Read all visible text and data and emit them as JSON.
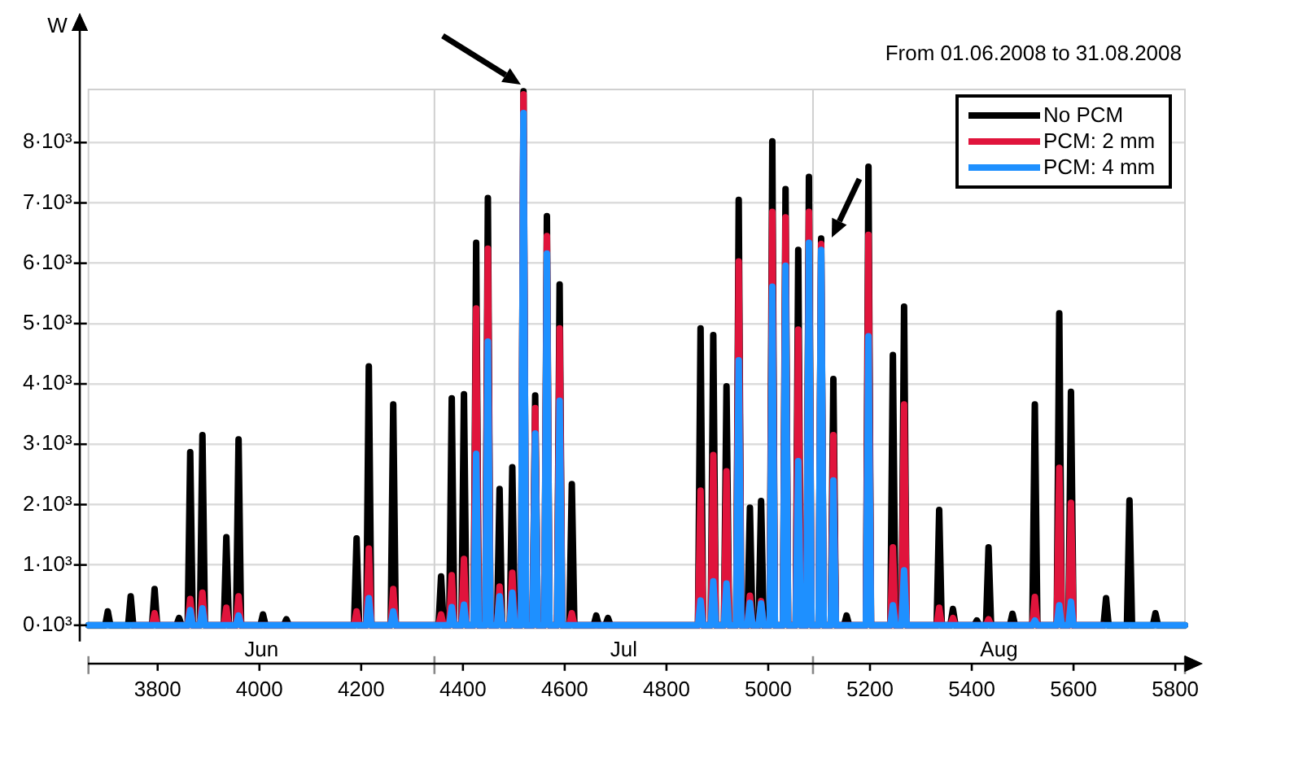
{
  "chart_data": {
    "type": "line",
    "subtitle": "From 01.06.2008 to 31.08.2008",
    "ylabel": "W",
    "legend": "top right",
    "grid": "y",
    "xlim": [
      3664,
      5819
    ],
    "xticks": [
      3800,
      4000,
      4200,
      4400,
      4600,
      4800,
      5000,
      5200,
      5400,
      5600,
      5800
    ],
    "ylim": [
      0,
      8880
    ],
    "yticks": [
      {
        "value": 0,
        "label": "0·10³"
      },
      {
        "value": 1000,
        "label": "1·10³"
      },
      {
        "value": 2000,
        "label": "2·10³"
      },
      {
        "value": 3000,
        "label": "3·10³"
      },
      {
        "value": 4000,
        "label": "4·10³"
      },
      {
        "value": 5000,
        "label": "5·10³"
      },
      {
        "value": 6000,
        "label": "6·10³"
      },
      {
        "value": 7000,
        "label": "7·10³"
      },
      {
        "value": 8000,
        "label": "8·10³"
      }
    ],
    "ref_lines": [
      {
        "axis": "x",
        "value": 4344,
        "color": "#d0d0d0"
      },
      {
        "axis": "x",
        "value": 5088,
        "color": "#d0d0d0"
      }
    ],
    "annotations": [
      "Jun",
      "Jul",
      "Aug"
    ],
    "x": [
      3664,
      3697,
      3702,
      3707,
      3742,
      3747,
      3752,
      3789,
      3794,
      3799,
      3837,
      3842,
      3847,
      3859,
      3864,
      3869,
      3883,
      3888,
      3893,
      3930,
      3935,
      3940,
      3954,
      3959,
      3964,
      4002,
      4007,
      4012,
      4048,
      4053,
      4058,
      4186,
      4191,
      4196,
      4210,
      4215,
      4220,
      4258,
      4263,
      4268,
      4352,
      4357,
      4362,
      4373,
      4378,
      4383,
      4397,
      4402,
      4407,
      4421,
      4426,
      4431,
      4444,
      4449,
      4454,
      4467,
      4472,
      4477,
      4492,
      4497,
      4502,
      4514,
      4519,
      4524,
      4537,
      4542,
      4547,
      4560,
      4565,
      4570,
      4585,
      4590,
      4595,
      4609,
      4614,
      4619,
      4657,
      4662,
      4667,
      4680,
      4685,
      4690,
      4862,
      4867,
      4872,
      4887,
      4892,
      4897,
      4913,
      4918,
      4923,
      4937,
      4942,
      4947,
      4959,
      4964,
      4969,
      4981,
      4986,
      4991,
      5003,
      5008,
      5013,
      5029,
      5034,
      5039,
      5054,
      5059,
      5064,
      5075,
      5080,
      5085,
      5099,
      5104,
      5109,
      5123,
      5128,
      5133,
      5149,
      5154,
      5159,
      5192,
      5197,
      5202,
      5240,
      5245,
      5250,
      5262,
      5267,
      5272,
      5331,
      5336,
      5341,
      5358,
      5363,
      5368,
      5405,
      5410,
      5415,
      5428,
      5433,
      5438,
      5475,
      5480,
      5485,
      5519,
      5524,
      5529,
      5567,
      5572,
      5577,
      5590,
      5595,
      5600,
      5659,
      5664,
      5669,
      5705,
      5710,
      5715,
      5756,
      5761,
      5766,
      5819
    ],
    "series": [
      {
        "name": "No PCM",
        "color": "#000000",
        "values": [
          0,
          0,
          230,
          0,
          0,
          480,
          0,
          0,
          600,
          0,
          0,
          120,
          0,
          0,
          2870,
          0,
          0,
          3150,
          0,
          0,
          1460,
          0,
          0,
          3080,
          0,
          0,
          180,
          0,
          0,
          100,
          0,
          0,
          1440,
          0,
          0,
          4290,
          0,
          0,
          3660,
          0,
          0,
          810,
          0,
          0,
          3760,
          0,
          0,
          3830,
          0,
          0,
          6340,
          0,
          0,
          7080,
          0,
          0,
          2260,
          0,
          0,
          2620,
          0,
          0,
          8850,
          0,
          0,
          3810,
          0,
          0,
          6780,
          0,
          0,
          5650,
          0,
          0,
          2340,
          0,
          0,
          160,
          0,
          0,
          120,
          0,
          0,
          4920,
          0,
          0,
          4810,
          0,
          0,
          3960,
          0,
          0,
          7050,
          0,
          0,
          1950,
          0,
          0,
          2060,
          0,
          0,
          8020,
          0,
          0,
          7230,
          0,
          0,
          6220,
          0,
          0,
          7430,
          0,
          0,
          6410,
          0,
          0,
          4080,
          0,
          0,
          160,
          0,
          0,
          7600,
          0,
          0,
          4480,
          0,
          0,
          5280,
          0,
          0,
          1910,
          0,
          0,
          270,
          0,
          0,
          80,
          0,
          0,
          1290,
          0,
          0,
          190,
          0,
          0,
          3660,
          0,
          0,
          5170,
          0,
          0,
          3870,
          0,
          0,
          450,
          0,
          0,
          2070,
          0,
          0,
          200,
          0,
          0
        ]
      },
      {
        "name": "PCM: 2 mm",
        "color": "#e0143c",
        "values": [
          null,
          null,
          null,
          null,
          null,
          null,
          0,
          0,
          200,
          0,
          0,
          0,
          0,
          0,
          435,
          0,
          0,
          540,
          0,
          0,
          290,
          0,
          0,
          480,
          0,
          0,
          0,
          0,
          0,
          0,
          0,
          0,
          230,
          0,
          0,
          1270,
          0,
          0,
          600,
          0,
          0,
          180,
          0,
          0,
          830,
          0,
          0,
          1100,
          0,
          0,
          5250,
          0,
          0,
          6240,
          0,
          0,
          640,
          0,
          0,
          870,
          0,
          0,
          8800,
          0,
          0,
          3600,
          0,
          0,
          6450,
          0,
          0,
          4920,
          0,
          0,
          200,
          0,
          0,
          0,
          0,
          0,
          0,
          0,
          0,
          2230,
          0,
          0,
          2820,
          0,
          0,
          2550,
          0,
          0,
          6030,
          0,
          0,
          490,
          0,
          0,
          400,
          0,
          0,
          6850,
          0,
          0,
          6760,
          0,
          0,
          4900,
          0,
          0,
          6850,
          0,
          0,
          6320,
          0,
          0,
          3150,
          0,
          0,
          0,
          0,
          0,
          6470,
          0,
          0,
          1290,
          0,
          0,
          3660,
          0,
          0,
          290,
          0,
          0,
          120,
          0,
          0,
          0,
          0,
          0,
          100,
          0,
          0,
          0,
          0,
          0,
          470,
          0,
          0,
          2610,
          0,
          0,
          2030,
          0,
          0,
          null,
          null,
          null,
          null,
          null,
          null,
          null,
          null,
          null
        ]
      },
      {
        "name": "PCM: 4 mm",
        "color": "#1e90ff",
        "values": [
          0,
          0,
          0,
          0,
          0,
          0,
          0,
          0,
          0,
          0,
          0,
          0,
          0,
          0,
          250,
          0,
          0,
          280,
          0,
          0,
          0,
          0,
          0,
          160,
          0,
          0,
          0,
          0,
          0,
          0,
          0,
          0,
          0,
          0,
          0,
          450,
          0,
          0,
          230,
          0,
          0,
          0,
          0,
          0,
          300,
          0,
          0,
          340,
          0,
          0,
          2840,
          0,
          0,
          4700,
          0,
          0,
          480,
          0,
          0,
          540,
          0,
          0,
          8490,
          0,
          0,
          3180,
          0,
          0,
          6160,
          0,
          0,
          3720,
          0,
          0,
          0,
          0,
          0,
          0,
          0,
          0,
          0,
          0,
          0,
          410,
          0,
          0,
          730,
          0,
          0,
          690,
          0,
          0,
          4390,
          0,
          0,
          370,
          0,
          0,
          360,
          0,
          0,
          5610,
          0,
          0,
          5960,
          0,
          0,
          2720,
          0,
          0,
          6340,
          0,
          0,
          6220,
          0,
          0,
          2400,
          0,
          0,
          0,
          0,
          0,
          4790,
          0,
          0,
          330,
          0,
          0,
          910,
          0,
          0,
          0,
          0,
          0,
          0,
          0,
          0,
          0,
          0,
          0,
          0,
          0,
          0,
          0,
          0,
          0,
          80,
          0,
          0,
          330,
          0,
          0,
          390,
          0,
          0,
          0,
          0,
          0,
          0,
          0,
          0,
          0,
          0,
          0
        ]
      }
    ]
  }
}
